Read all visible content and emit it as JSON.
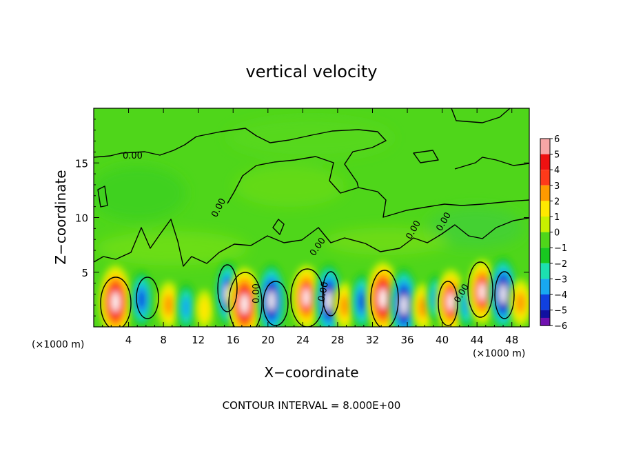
{
  "chart_data": {
    "type": "heatmap",
    "title": "vertical velocity",
    "xlabel": "X−coordinate",
    "ylabel": "Z−coordinate",
    "x_unit_left": "(×1000 m)",
    "x_unit_right": "(×1000 m)",
    "footer": "CONTOUR INTERVAL = 8.000E+00",
    "xlim": [
      0,
      50
    ],
    "ylim": [
      0,
      20
    ],
    "x_ticks": [
      4,
      8,
      12,
      16,
      20,
      24,
      28,
      32,
      36,
      40,
      44,
      48
    ],
    "y_ticks": [
      5,
      10,
      15
    ],
    "colorbar": {
      "levels": [
        6,
        5,
        4,
        3,
        2,
        1,
        0,
        -1,
        -2,
        -3,
        -4,
        -5,
        -6
      ],
      "colors": [
        "#f7a6a6",
        "#ee1111",
        "#ff3a1a",
        "#ff9a00",
        "#ffe800",
        "#c8f000",
        "#4fd61a",
        "#18c820",
        "#1ce0b0",
        "#18a8f0",
        "#1040e0",
        "#1010a0",
        "#7010b0"
      ]
    },
    "contour_labels": [
      "0.00",
      "0.00",
      "0.00",
      "0.00",
      "0.00",
      "0.00",
      "0.00",
      "0.00"
    ],
    "cells": [
      {
        "x": 2.5,
        "z": 2.3,
        "w": 1.7,
        "v": 6
      },
      {
        "x": 5.5,
        "z": 2.5,
        "w": -3.8,
        "v": -4
      },
      {
        "x": 8.6,
        "z": 2.0,
        "w": 2.5,
        "v": 3
      },
      {
        "x": 10.6,
        "z": 1.8,
        "w": -2.5,
        "v": -3
      },
      {
        "x": 12.7,
        "z": 1.6,
        "w": 1.5,
        "v": 2
      },
      {
        "x": 15.4,
        "z": 3.0,
        "w": -4.8,
        "v": -5
      },
      {
        "x": 17.3,
        "z": 2.1,
        "w": 6.5,
        "v": 6
      },
      {
        "x": 20.4,
        "z": 2.4,
        "w": -5.8,
        "v": -6
      },
      {
        "x": 24.4,
        "z": 2.7,
        "w": 5.5,
        "v": 5
      },
      {
        "x": 27.0,
        "z": 2.4,
        "w": -5.0,
        "v": -6
      },
      {
        "x": 28.8,
        "z": 1.9,
        "w": 2.5,
        "v": 3
      },
      {
        "x": 30.8,
        "z": 2.3,
        "w": -3.0,
        "v": -4
      },
      {
        "x": 33.2,
        "z": 2.6,
        "w": 6.0,
        "v": 6
      },
      {
        "x": 35.6,
        "z": 2.0,
        "w": -5.5,
        "v": -6
      },
      {
        "x": 37.8,
        "z": 1.8,
        "w": 2.2,
        "v": 3
      },
      {
        "x": 39.3,
        "z": 2.6,
        "w": -2.5,
        "v": -3
      },
      {
        "x": 41.0,
        "z": 2.3,
        "w": 4.5,
        "v": 5
      },
      {
        "x": 42.8,
        "z": 2.0,
        "w": -2.8,
        "v": -3
      },
      {
        "x": 44.6,
        "z": 3.2,
        "w": 5.0,
        "v": 5
      },
      {
        "x": 47.0,
        "z": 3.0,
        "w": -5.5,
        "v": -6
      },
      {
        "x": 49.0,
        "z": 2.2,
        "w": 2.0,
        "v": 3
      }
    ]
  }
}
